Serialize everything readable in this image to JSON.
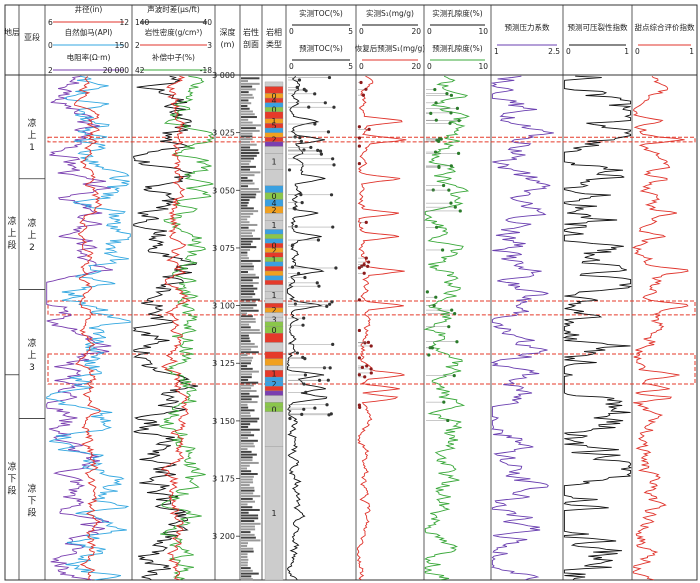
{
  "chart_data": {
    "type": "line",
    "depth_axis": {
      "label": "深度 (m)",
      "ticks": [
        "3 000",
        "3 025",
        "3 050",
        "3 075",
        "3 100",
        "3 125",
        "3 150",
        "3 175",
        "3 200"
      ],
      "range": [
        3000,
        3219
      ]
    },
    "strat_headers": {
      "layer": "地层",
      "sub": "亚段"
    },
    "formations": [
      {
        "name": "凉上段",
        "top": 3006,
        "base": 3130
      },
      {
        "name": "凉下段",
        "top": 3130,
        "base": 3219
      }
    ],
    "sub_members": [
      {
        "name": "凉上 1",
        "top": 3006,
        "base": 3045
      },
      {
        "name": "凉上 2",
        "top": 3045,
        "base": 3093
      },
      {
        "name": "凉上 3",
        "top": 3093,
        "base": 3149
      },
      {
        "name": "凉下段",
        "top": 3149,
        "base": 3219
      }
    ],
    "track1_legends": [
      {
        "name": "井径(in)",
        "min": "6",
        "max": "12",
        "color": "#e0332b"
      },
      {
        "name": "自然伽马(API)",
        "min": "0",
        "max": "150",
        "color": "#33a7e0"
      },
      {
        "name": "电阻率(Ω·m)",
        "min": "2",
        "max": "20 000",
        "color": "#7a3fb0"
      }
    ],
    "track2_legends": [
      {
        "name": "声波时差(μs/ft)",
        "min": "140",
        "max": "40",
        "color": "#111111"
      },
      {
        "name": "岩性密度(g/cm³)",
        "min": "2",
        "max": "3",
        "color": "#e0332b"
      },
      {
        "name": "补偿中子(%)",
        "min": "42",
        "max": "-18",
        "color": "#3aa83a"
      }
    ],
    "lith_headers": {
      "profile": "岩性剖面",
      "facies": "岩相类型"
    },
    "toc_legends": [
      {
        "name": "实测TOC(%)",
        "min": "0",
        "max": "5",
        "color": "#111111"
      },
      {
        "name": "预测TOC(%)",
        "min": "0",
        "max": "5",
        "color": "#111111"
      }
    ],
    "s1_legends": [
      {
        "name": "实测S₁(mg/g)",
        "min": "0",
        "max": "20",
        "color": "#111111"
      },
      {
        "name": "恢复后预测S₁(mg/g)",
        "min": "0",
        "max": "20",
        "color": "#e0332b"
      }
    ],
    "por_legends": [
      {
        "name": "实测孔隙度(%)",
        "min": "0",
        "max": "10",
        "color": "#111111"
      },
      {
        "name": "预测孔隙度(%)",
        "min": "0",
        "max": "10",
        "color": "#3aa83a"
      }
    ],
    "pressure": {
      "name": "预测压力系数",
      "min": "1",
      "max": "2.5",
      "color": "#6a3fb0"
    },
    "frac": {
      "name": "预测可压裂性指数",
      "min": "0",
      "max": "1",
      "color": "#111111"
    },
    "sweet": {
      "name": "甜点综合评价指数",
      "min": "0",
      "max": "1",
      "color": "#e0332b"
    },
    "facies_blocks": [
      {
        "top": 3003,
        "base": 3005,
        "code": "",
        "color": "#cccccc"
      },
      {
        "top": 3005,
        "base": 3008,
        "code": "",
        "color": "#e53a2a"
      },
      {
        "top": 3008,
        "base": 3010,
        "code": "0",
        "color": "#f0a020"
      },
      {
        "top": 3010,
        "base": 3012,
        "code": "4",
        "color": "#e53a2a"
      },
      {
        "top": 3012,
        "base": 3014,
        "code": "",
        "color": "#3aa0e0"
      },
      {
        "top": 3014,
        "base": 3016,
        "code": "0",
        "color": "#8ac64a"
      },
      {
        "top": 3016,
        "base": 3019,
        "code": "",
        "color": "#e53a2a"
      },
      {
        "top": 3019,
        "base": 3021,
        "code": "1",
        "color": "#f0a020"
      },
      {
        "top": 3021,
        "base": 3023,
        "code": "5",
        "color": "#e53a2a"
      },
      {
        "top": 3023,
        "base": 3025,
        "code": "",
        "color": "#3aa0e0"
      },
      {
        "top": 3025,
        "base": 3027,
        "code": "",
        "color": "#f0a020"
      },
      {
        "top": 3027,
        "base": 3029,
        "code": "2",
        "color": "#e53a2a"
      },
      {
        "top": 3029,
        "base": 3031,
        "code": "",
        "color": "#7a3fb0"
      },
      {
        "top": 3031,
        "base": 3034,
        "code": "",
        "color": "#cccccc"
      },
      {
        "top": 3034,
        "base": 3041,
        "code": "1",
        "color": "#cccccc"
      },
      {
        "top": 3041,
        "base": 3048,
        "code": "",
        "color": "#cccccc"
      },
      {
        "top": 3048,
        "base": 3051,
        "code": "",
        "color": "#3aa0e0"
      },
      {
        "top": 3051,
        "base": 3054,
        "code": "0",
        "color": "#8ac64a"
      },
      {
        "top": 3054,
        "base": 3057,
        "code": "4",
        "color": "#3aa0e0"
      },
      {
        "top": 3057,
        "base": 3060,
        "code": "2",
        "color": "#f0a020"
      },
      {
        "top": 3060,
        "base": 3063,
        "code": "",
        "color": "#cccccc"
      },
      {
        "top": 3063,
        "base": 3067,
        "code": "1",
        "color": "#cccccc"
      },
      {
        "top": 3067,
        "base": 3069,
        "code": "",
        "color": "#3aa0e0"
      },
      {
        "top": 3069,
        "base": 3071,
        "code": "",
        "color": "#8ac64a"
      },
      {
        "top": 3071,
        "base": 3073,
        "code": "",
        "color": "#3aa0e0"
      },
      {
        "top": 3073,
        "base": 3075,
        "code": "0",
        "color": "#e53a2a"
      },
      {
        "top": 3075,
        "base": 3077,
        "code": "2",
        "color": "#f0a020"
      },
      {
        "top": 3077,
        "base": 3079,
        "code": "",
        "color": "#e53a2a"
      },
      {
        "top": 3079,
        "base": 3081,
        "code": "1",
        "color": "#8ac64a"
      },
      {
        "top": 3081,
        "base": 3083,
        "code": "",
        "color": "#3aa0e0"
      },
      {
        "top": 3083,
        "base": 3085,
        "code": "",
        "color": "#e53a2a"
      },
      {
        "top": 3085,
        "base": 3087,
        "code": "",
        "color": "#f0a020"
      },
      {
        "top": 3087,
        "base": 3089,
        "code": "",
        "color": "#3aa0e0"
      },
      {
        "top": 3089,
        "base": 3091,
        "code": "",
        "color": "#e53a2a"
      },
      {
        "top": 3091,
        "base": 3094,
        "code": "",
        "color": "#cccccc"
      },
      {
        "top": 3094,
        "base": 3097,
        "code": "1",
        "color": "#cccccc"
      },
      {
        "top": 3097,
        "base": 3099,
        "code": "",
        "color": "#cccccc"
      },
      {
        "top": 3099,
        "base": 3101,
        "code": "",
        "color": "#e53a2a"
      },
      {
        "top": 3101,
        "base": 3103,
        "code": "2",
        "color": "#f0a020"
      },
      {
        "top": 3103,
        "base": 3105,
        "code": "",
        "color": "#cccccc"
      },
      {
        "top": 3105,
        "base": 3107,
        "code": "3",
        "color": "#cccccc"
      },
      {
        "top": 3107,
        "base": 3109,
        "code": "",
        "color": "#8ac64a"
      },
      {
        "top": 3109,
        "base": 3112,
        "code": "0",
        "color": "#8ac64a"
      },
      {
        "top": 3112,
        "base": 3116,
        "code": "",
        "color": "#e53a2a"
      },
      {
        "top": 3116,
        "base": 3120,
        "code": "",
        "color": "#cccccc"
      },
      {
        "top": 3120,
        "base": 3123,
        "code": "",
        "color": "#e53a2a"
      },
      {
        "top": 3123,
        "base": 3126,
        "code": "",
        "color": "#f0a020"
      },
      {
        "top": 3126,
        "base": 3128,
        "code": "",
        "color": "#cccccc"
      },
      {
        "top": 3128,
        "base": 3131,
        "code": "1",
        "color": "#e53a2a"
      },
      {
        "top": 3131,
        "base": 3133,
        "code": "",
        "color": "#3aa0e0"
      },
      {
        "top": 3133,
        "base": 3135,
        "code": "2",
        "color": "#3aa0e0"
      },
      {
        "top": 3135,
        "base": 3137,
        "code": "",
        "color": "#e53a2a"
      },
      {
        "top": 3137,
        "base": 3139,
        "code": "",
        "color": "#7a3fb0"
      },
      {
        "top": 3139,
        "base": 3142,
        "code": "",
        "color": "#cccccc"
      },
      {
        "top": 3142,
        "base": 3144,
        "code": "",
        "color": "#8ac64a"
      },
      {
        "top": 3144,
        "base": 3146,
        "code": "0",
        "color": "#8ac64a"
      },
      {
        "top": 3146,
        "base": 3161,
        "code": "",
        "color": "#cccccc"
      },
      {
        "top": 3161,
        "base": 3219,
        "code": "1",
        "color": "#cccccc"
      }
    ],
    "highlight_intervals": [
      {
        "top": 3027,
        "base": 3029
      },
      {
        "top": 3098,
        "base": 3104
      },
      {
        "top": 3121,
        "base": 3134
      }
    ]
  }
}
